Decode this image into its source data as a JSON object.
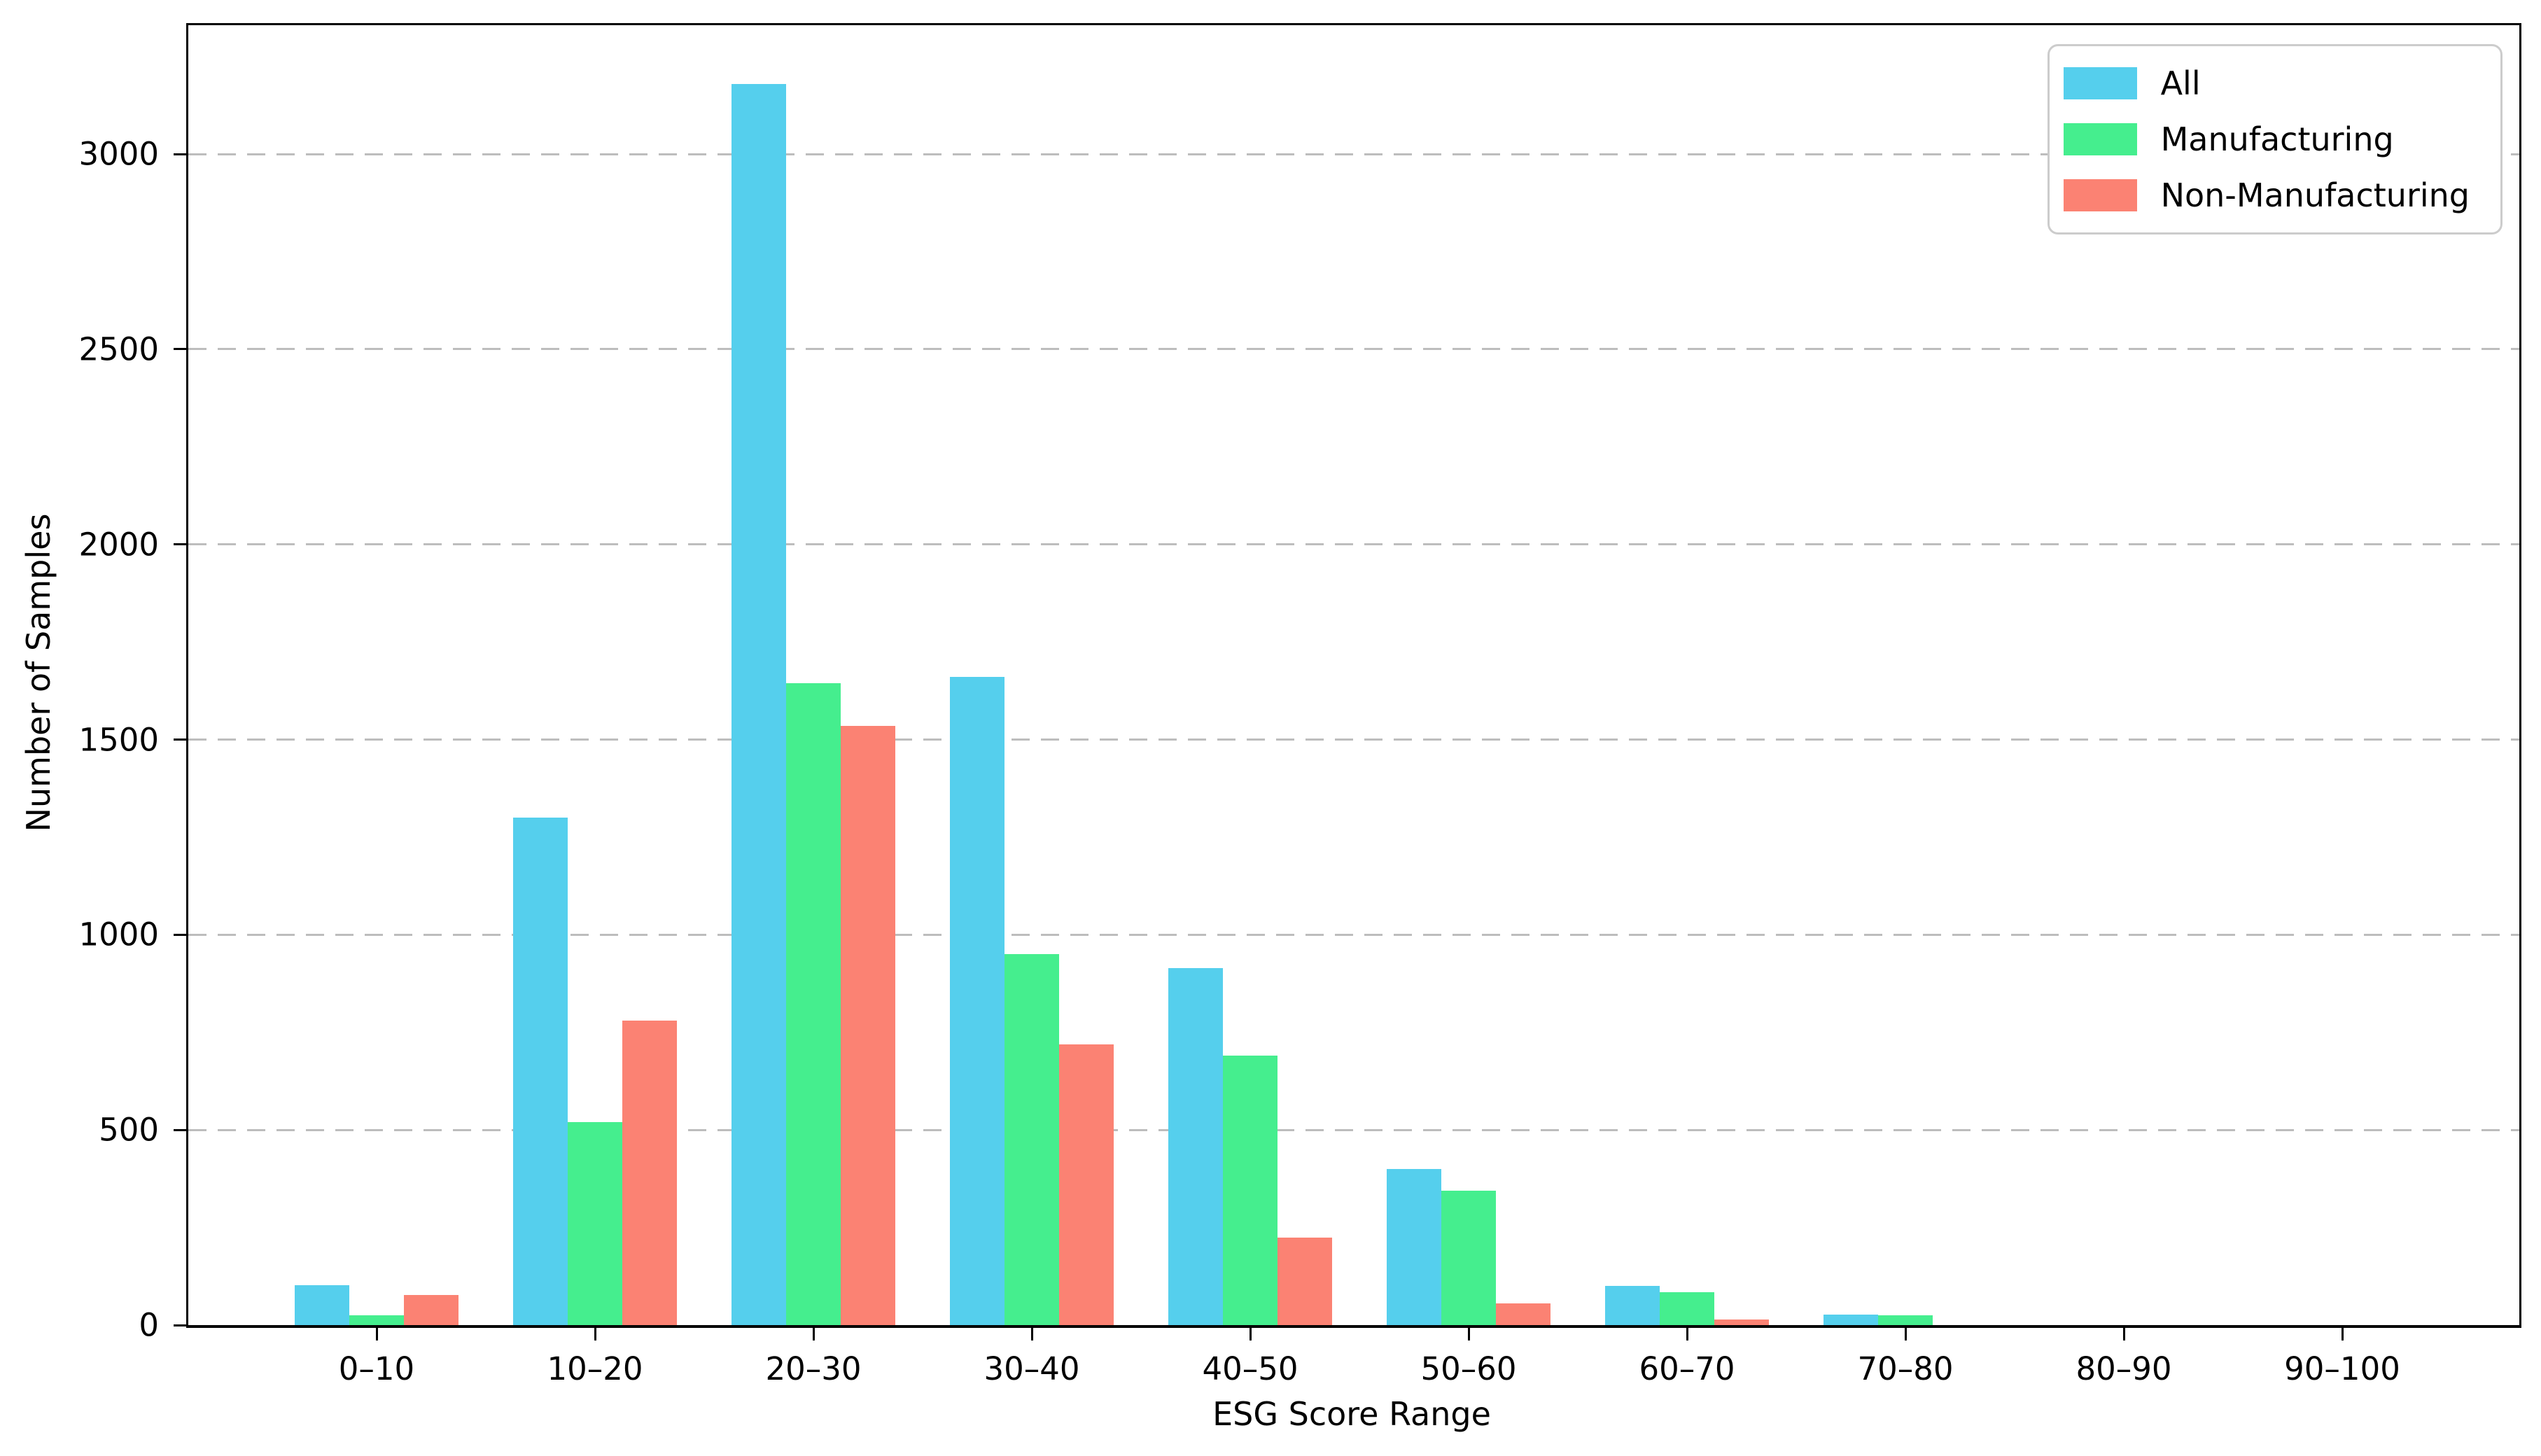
{
  "figure": {
    "background_color": "#ffffff",
    "grid_color": "#bdbdbd",
    "axis_color": "#000000"
  },
  "chart_data": {
    "type": "bar",
    "title": "",
    "xlabel": "ESG Score Range",
    "ylabel": "Number of Samples",
    "categories": [
      "0–10",
      "10–20",
      "20–30",
      "30–40",
      "40–50",
      "50–60",
      "60–70",
      "70–80",
      "80–90",
      "90–100"
    ],
    "series": [
      {
        "name": "All",
        "color": "#55CFED",
        "values": [
          103,
          1300,
          3180,
          1660,
          915,
          400,
          100,
          27,
          0,
          0
        ]
      },
      {
        "name": "Manufacturing",
        "color": "#45EE8E",
        "values": [
          25,
          520,
          1645,
          950,
          690,
          345,
          85,
          25,
          0,
          0
        ]
      },
      {
        "name": "Non-Manufacturing",
        "color": "#FB8273",
        "values": [
          78,
          780,
          1535,
          720,
          225,
          55,
          15,
          0,
          0,
          0
        ]
      }
    ],
    "ylim": [
      0,
      3330
    ],
    "yticks": [
      0,
      500,
      1000,
      1500,
      2000,
      2500,
      3000
    ],
    "grid": "horizontal-dashed",
    "legend_position": "top-right-inside"
  }
}
